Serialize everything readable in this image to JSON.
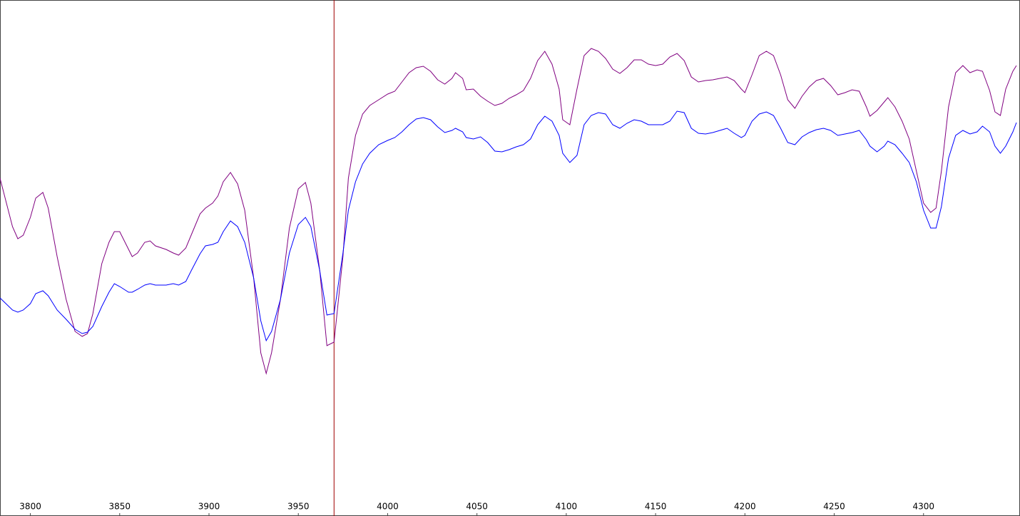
{
  "chart_data": {
    "type": "line",
    "x": [
      3783,
      3790,
      3793,
      3796,
      3800,
      3803,
      3807,
      3810,
      3815,
      3820,
      3825,
      3829,
      3832,
      3835,
      3840,
      3844,
      3847,
      3850,
      3855,
      3857,
      3860,
      3864,
      3867,
      3870,
      3876,
      3880,
      3883,
      3887,
      3890,
      3895,
      3898,
      3902,
      3905,
      3908,
      3912,
      3916,
      3920,
      3925,
      3929,
      3932,
      3935,
      3940,
      3945,
      3950,
      3954,
      3957,
      3962,
      3966,
      3970,
      3975,
      3978,
      3982,
      3986,
      3990,
      3995,
      4000,
      4004,
      4008,
      4012,
      4016,
      4020,
      4024,
      4028,
      4032,
      4036,
      4038,
      4042,
      4044,
      4048,
      4052,
      4056,
      4060,
      4064,
      4068,
      4072,
      4076,
      4080,
      4084,
      4088,
      4092,
      4096,
      4098,
      4102,
      4106,
      4110,
      4114,
      4118,
      4122,
      4126,
      4130,
      4134,
      4138,
      4142,
      4146,
      4150,
      4154,
      4158,
      4162,
      4166,
      4170,
      4174,
      4178,
      4182,
      4186,
      4190,
      4194,
      4198,
      4200,
      4204,
      4208,
      4212,
      4216,
      4220,
      4224,
      4228,
      4232,
      4236,
      4240,
      4244,
      4248,
      4252,
      4256,
      4260,
      4264,
      4268,
      4270,
      4274,
      4278,
      4280,
      4284,
      4288,
      4292,
      4296,
      4300,
      4304,
      4307,
      4310,
      4314,
      4318,
      4322,
      4326,
      4330,
      4333,
      4337,
      4340,
      4343,
      4346,
      4350,
      4352
    ],
    "series": [
      {
        "color": "#800080",
        "values": [
          250,
          318,
          335,
          330,
          305,
          278,
          270,
          292,
          360,
          420,
          465,
          472,
          468,
          440,
          370,
          340,
          325,
          325,
          350,
          360,
          355,
          340,
          338,
          345,
          350,
          355,
          358,
          348,
          330,
          300,
          292,
          285,
          275,
          255,
          242,
          258,
          295,
          390,
          495,
          524,
          495,
          420,
          320,
          265,
          256,
          285,
          380,
          485,
          480,
          360,
          250,
          190,
          160,
          148,
          140,
          132,
          128,
          115,
          102,
          95,
          93,
          100,
          112,
          118,
          110,
          102,
          110,
          126,
          125,
          135,
          142,
          148,
          145,
          138,
          133,
          127,
          110,
          85,
          72,
          90,
          125,
          168,
          175,
          125,
          78,
          68,
          72,
          82,
          97,
          103,
          95,
          84,
          84,
          90,
          92,
          90,
          80,
          75,
          85,
          108,
          115,
          113,
          112,
          110,
          108,
          113,
          125,
          130,
          105,
          78,
          72,
          78,
          105,
          140,
          152,
          135,
          122,
          113,
          110,
          120,
          133,
          130,
          126,
          128,
          150,
          163,
          155,
          143,
          137,
          150,
          170,
          195,
          240,
          285,
          298,
          292,
          240,
          150,
          102,
          92,
          102,
          98,
          100,
          127,
          157,
          162,
          125,
          100,
          92
        ]
      },
      {
        "color": "#0000ff",
        "values": [
          418,
          435,
          438,
          435,
          426,
          412,
          408,
          415,
          435,
          448,
          462,
          468,
          466,
          458,
          430,
          410,
          398,
          402,
          410,
          410,
          406,
          400,
          398,
          400,
          400,
          398,
          400,
          395,
          380,
          356,
          345,
          343,
          340,
          325,
          310,
          318,
          340,
          390,
          450,
          478,
          465,
          420,
          355,
          315,
          305,
          318,
          380,
          442,
          440,
          355,
          295,
          255,
          230,
          215,
          203,
          197,
          193,
          185,
          175,
          167,
          165,
          168,
          178,
          186,
          183,
          180,
          185,
          193,
          195,
          192,
          200,
          212,
          213,
          210,
          206,
          203,
          195,
          175,
          163,
          170,
          190,
          215,
          228,
          218,
          175,
          162,
          158,
          160,
          175,
          180,
          173,
          168,
          170,
          175,
          175,
          175,
          170,
          156,
          158,
          180,
          187,
          188,
          186,
          183,
          180,
          187,
          193,
          190,
          170,
          160,
          157,
          162,
          180,
          200,
          203,
          192,
          186,
          182,
          180,
          183,
          190,
          188,
          186,
          183,
          196,
          205,
          213,
          205,
          198,
          203,
          215,
          228,
          255,
          295,
          320,
          320,
          290,
          222,
          190,
          183,
          188,
          185,
          177,
          185,
          205,
          215,
          205,
          185,
          172
        ]
      }
    ],
    "xlim": [
      3783,
      4354
    ],
    "xticks": [
      3800,
      3850,
      3900,
      3950,
      4000,
      4050,
      4100,
      4150,
      4200,
      4250,
      4300
    ],
    "ylim": [
      724,
      0
    ],
    "marker_x": 3970,
    "marker_color": "#a00000"
  }
}
